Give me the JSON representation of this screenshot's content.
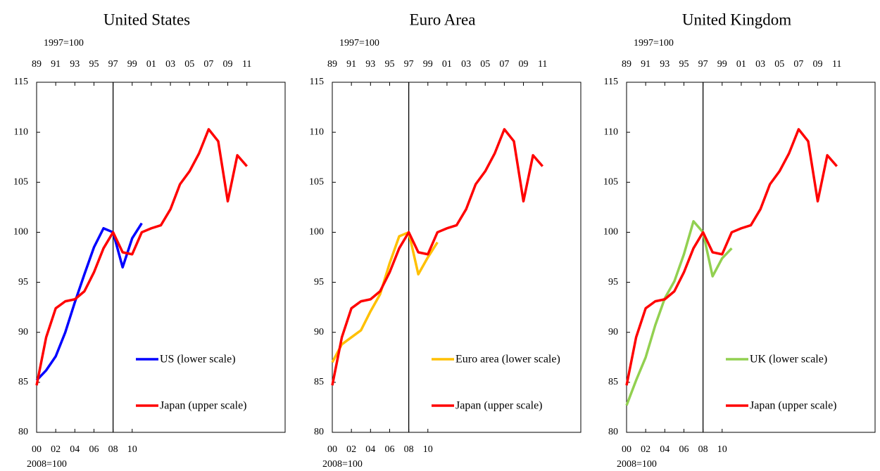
{
  "chart_data": [
    {
      "type": "line",
      "title": "United States",
      "x_label": "2008=100",
      "x2_label": "1997=100",
      "xlim": [
        2000,
        2026
      ],
      "xticks": [
        {
          "value": 2000,
          "label": "00"
        },
        {
          "value": 2002,
          "label": "02"
        },
        {
          "value": 2004,
          "label": "04"
        },
        {
          "value": 2006,
          "label": "06"
        },
        {
          "value": 2008,
          "label": "08"
        },
        {
          "value": 2010,
          "label": "10"
        }
      ],
      "x2lim": [
        1989,
        2015
      ],
      "x2ticks": [
        {
          "value": 1989,
          "label": "89"
        },
        {
          "value": 1991,
          "label": "91"
        },
        {
          "value": 1993,
          "label": "93"
        },
        {
          "value": 1995,
          "label": "95"
        },
        {
          "value": 1997,
          "label": "97"
        },
        {
          "value": 1999,
          "label": "99"
        },
        {
          "value": 2001,
          "label": "01"
        },
        {
          "value": 2003,
          "label": "03"
        },
        {
          "value": 2005,
          "label": "05"
        },
        {
          "value": 2007,
          "label": "07"
        },
        {
          "value": 2009,
          "label": "09"
        },
        {
          "value": 2011,
          "label": "11"
        }
      ],
      "ylim": [
        80,
        115
      ],
      "yticks": [
        80,
        85,
        90,
        95,
        100,
        105,
        110,
        115
      ],
      "vline_x": 2008,
      "legend": "lower right",
      "series": [
        {
          "name": "US (lower scale)",
          "color": "#0000ff",
          "x": [
            2000,
            2001,
            2002,
            2003,
            2004,
            2005,
            2006,
            2007,
            2008,
            2009,
            2010,
            2011
          ],
          "values": [
            85.2,
            86.2,
            87.6,
            90.0,
            93.0,
            95.8,
            98.5,
            100.4,
            100.0,
            96.5,
            99.4,
            100.9
          ]
        },
        {
          "name": "Japan (upper scale)",
          "color": "#ff0000",
          "axis": "x2",
          "x": [
            1989,
            1990,
            1991,
            1992,
            1993,
            1994,
            1995,
            1996,
            1997,
            1998,
            1999,
            2000,
            2001,
            2002,
            2003,
            2004,
            2005,
            2006,
            2007,
            2008,
            2009,
            2010,
            2011
          ],
          "values": [
            84.7,
            89.5,
            92.4,
            93.1,
            93.3,
            94.1,
            96.0,
            98.4,
            100.0,
            98.0,
            97.8,
            100.0,
            100.4,
            100.7,
            102.3,
            104.8,
            106.1,
            107.9,
            110.3,
            109.1,
            103.1,
            107.7,
            106.6
          ]
        }
      ]
    },
    {
      "type": "line",
      "title": "Euro Area",
      "x_label": "2008=100",
      "x2_label": "1997=100",
      "xlim": [
        2000,
        2026
      ],
      "xticks": [
        {
          "value": 2000,
          "label": "00"
        },
        {
          "value": 2002,
          "label": "02"
        },
        {
          "value": 2004,
          "label": "04"
        },
        {
          "value": 2006,
          "label": "06"
        },
        {
          "value": 2008,
          "label": "08"
        },
        {
          "value": 2010,
          "label": "10"
        }
      ],
      "x2lim": [
        1989,
        2015
      ],
      "x2ticks": [
        {
          "value": 1989,
          "label": "89"
        },
        {
          "value": 1991,
          "label": "91"
        },
        {
          "value": 1993,
          "label": "93"
        },
        {
          "value": 1995,
          "label": "95"
        },
        {
          "value": 1997,
          "label": "97"
        },
        {
          "value": 1999,
          "label": "99"
        },
        {
          "value": 2001,
          "label": "01"
        },
        {
          "value": 2003,
          "label": "03"
        },
        {
          "value": 2005,
          "label": "05"
        },
        {
          "value": 2007,
          "label": "07"
        },
        {
          "value": 2009,
          "label": "09"
        },
        {
          "value": 2011,
          "label": "11"
        }
      ],
      "ylim": [
        80,
        115
      ],
      "yticks": [
        80,
        85,
        90,
        95,
        100,
        105,
        110,
        115
      ],
      "vline_x": 2008,
      "legend": "lower right",
      "series": [
        {
          "name": "Euro area (lower scale)",
          "color": "#ffc000",
          "x": [
            2000,
            2001,
            2002,
            2003,
            2004,
            2005,
            2006,
            2007,
            2008,
            2009,
            2010,
            2011
          ],
          "values": [
            87.0,
            88.8,
            89.5,
            90.2,
            92.1,
            93.8,
            96.9,
            99.6,
            100.0,
            95.8,
            97.5,
            99.0
          ]
        },
        {
          "name": "Japan (upper scale)",
          "color": "#ff0000",
          "axis": "x2",
          "x": [
            1989,
            1990,
            1991,
            1992,
            1993,
            1994,
            1995,
            1996,
            1997,
            1998,
            1999,
            2000,
            2001,
            2002,
            2003,
            2004,
            2005,
            2006,
            2007,
            2008,
            2009,
            2010,
            2011
          ],
          "values": [
            84.7,
            89.5,
            92.4,
            93.1,
            93.3,
            94.1,
            96.0,
            98.4,
            100.0,
            98.0,
            97.8,
            100.0,
            100.4,
            100.7,
            102.3,
            104.8,
            106.1,
            107.9,
            110.3,
            109.1,
            103.1,
            107.7,
            106.6
          ]
        }
      ]
    },
    {
      "type": "line",
      "title": "United Kingdom",
      "x_label": "2008=100",
      "x2_label": "1997=100",
      "xlim": [
        2000,
        2026
      ],
      "xticks": [
        {
          "value": 2000,
          "label": "00"
        },
        {
          "value": 2002,
          "label": "02"
        },
        {
          "value": 2004,
          "label": "04"
        },
        {
          "value": 2006,
          "label": "06"
        },
        {
          "value": 2008,
          "label": "08"
        },
        {
          "value": 2010,
          "label": "10"
        }
      ],
      "x2lim": [
        1989,
        2015
      ],
      "x2ticks": [
        {
          "value": 1989,
          "label": "89"
        },
        {
          "value": 1991,
          "label": "91"
        },
        {
          "value": 1993,
          "label": "93"
        },
        {
          "value": 1995,
          "label": "95"
        },
        {
          "value": 1997,
          "label": "97"
        },
        {
          "value": 1999,
          "label": "99"
        },
        {
          "value": 2001,
          "label": "01"
        },
        {
          "value": 2003,
          "label": "03"
        },
        {
          "value": 2005,
          "label": "05"
        },
        {
          "value": 2007,
          "label": "07"
        },
        {
          "value": 2009,
          "label": "09"
        },
        {
          "value": 2011,
          "label": "11"
        }
      ],
      "ylim": [
        80,
        115
      ],
      "yticks": [
        80,
        85,
        90,
        95,
        100,
        105,
        110,
        115
      ],
      "vline_x": 2008,
      "legend": "lower right",
      "series": [
        {
          "name": "UK (lower scale)",
          "color": "#92d050",
          "x": [
            2000,
            2001,
            2002,
            2003,
            2004,
            2005,
            2006,
            2007,
            2008,
            2009,
            2010,
            2011
          ],
          "values": [
            82.7,
            85.2,
            87.5,
            90.7,
            93.4,
            95.1,
            97.8,
            101.1,
            100.0,
            95.6,
            97.4,
            98.4
          ]
        },
        {
          "name": "Japan (upper scale)",
          "color": "#ff0000",
          "axis": "x2",
          "x": [
            1989,
            1990,
            1991,
            1992,
            1993,
            1994,
            1995,
            1996,
            1997,
            1998,
            1999,
            2000,
            2001,
            2002,
            2003,
            2004,
            2005,
            2006,
            2007,
            2008,
            2009,
            2010,
            2011
          ],
          "values": [
            84.7,
            89.5,
            92.4,
            93.1,
            93.3,
            94.1,
            96.0,
            98.4,
            100.0,
            98.0,
            97.8,
            100.0,
            100.4,
            100.7,
            102.3,
            104.8,
            106.1,
            107.9,
            110.3,
            109.1,
            103.1,
            107.7,
            106.6
          ]
        }
      ]
    }
  ]
}
